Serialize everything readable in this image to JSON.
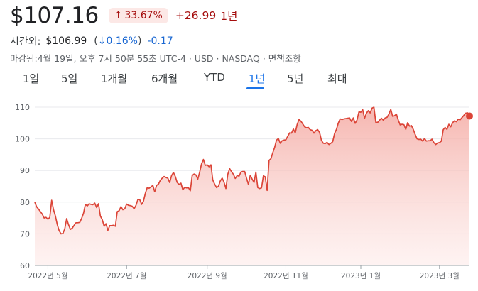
{
  "quote": {
    "price": "$107.16",
    "change_pct": "33.67%",
    "change_abs": "+26.99",
    "period": "1년"
  },
  "after_hours": {
    "label": "시간외:",
    "price": "$106.99",
    "pct_open": "(",
    "pct": "0.16%",
    "pct_close": ")",
    "abs": "-0.17"
  },
  "meta": "마감됨:4월 19일, 오후 7시 50분 55초 UTC-4 · USD · NASDAQ · 면책조항",
  "tabs": [
    {
      "label": "1일",
      "active": false
    },
    {
      "label": "5일",
      "active": false
    },
    {
      "label": "1개월",
      "active": false
    },
    {
      "label": "6개월",
      "active": false
    },
    {
      "label": "YTD",
      "active": false
    },
    {
      "label": "1년",
      "active": true
    },
    {
      "label": "5년",
      "active": false
    },
    {
      "label": "최대",
      "active": false
    }
  ],
  "colors": {
    "line": "#db4437",
    "negative": "#a50e0e",
    "down_after": "#1967d2",
    "accent": "#1a73e8"
  },
  "chart_data": {
    "type": "area",
    "ylim": [
      60,
      110
    ],
    "yticks": [
      60,
      70,
      80,
      90,
      100,
      110
    ],
    "xticks": [
      {
        "label": "2022년 5월",
        "index": 7
      },
      {
        "label": "2022년 7월",
        "index": 49
      },
      {
        "label": "2022년 9월",
        "index": 92
      },
      {
        "label": "2022년 11월",
        "index": 134
      },
      {
        "label": "2023년 1월",
        "index": 174
      },
      {
        "label": "2023년 3월",
        "index": 216
      }
    ],
    "grid": true,
    "values": [
      80.0,
      78.5,
      77.8,
      77.0,
      76.2,
      75.0,
      75.2,
      74.6,
      75.2,
      80.6,
      77.6,
      75.6,
      72.9,
      71.0,
      70.0,
      70.1,
      71.6,
      74.8,
      72.9,
      71.4,
      71.8,
      72.7,
      73.5,
      73.5,
      73.6,
      74.9,
      76.5,
      79.3,
      78.8,
      79.5,
      79.3,
      79.2,
      79.7,
      78.3,
      79.5,
      75.6,
      74.5,
      72.4,
      73.2,
      71.1,
      72.6,
      72.6,
      72.7,
      72.4,
      77.0,
      77.3,
      78.6,
      77.6,
      77.9,
      79.4,
      79.0,
      78.9,
      78.7,
      77.9,
      79.0,
      80.8,
      80.8,
      79.3,
      80.3,
      82.8,
      84.6,
      84.4,
      84.8,
      85.3,
      83.3,
      85.3,
      85.7,
      86.9,
      87.6,
      88.1,
      87.8,
      87.6,
      86.2,
      88.4,
      89.4,
      88.1,
      86.2,
      85.6,
      86.0,
      83.9,
      84.7,
      84.5,
      84.6,
      83.6,
      88.4,
      88.9,
      88.6,
      87.3,
      89.5,
      92.1,
      93.5,
      91.6,
      91.8,
      91.2,
      91.8,
      87.0,
      85.7,
      84.6,
      85.0,
      86.7,
      87.6,
      86.3,
      84.3,
      88.8,
      90.6,
      89.6,
      88.8,
      87.5,
      88.4,
      88.2,
      89.5,
      89.7,
      89.7,
      87.6,
      85.6,
      88.5,
      87.3,
      86.2,
      89.5,
      84.6,
      84.3,
      84.5,
      88.3,
      88.0,
      83.7,
      93.2,
      93.7,
      95.6,
      97.3,
      99.6,
      100.1,
      98.6,
      99.4,
      99.6,
      99.7,
      100.8,
      101.9,
      101.8,
      103.1,
      101.9,
      104.5,
      106.1,
      105.6,
      104.7,
      103.8,
      103.5,
      103.6,
      102.9,
      102.7,
      101.8,
      102.6,
      102.9,
      102.0,
      99.5,
      98.6,
      98.5,
      98.9,
      98.2,
      98.6,
      99.1,
      101.7,
      103.0,
      105.0,
      106.3,
      106.1,
      106.3,
      106.4,
      106.5,
      106.6,
      105.5,
      106.6,
      104.9,
      106.0,
      108.5,
      108.4,
      109.2,
      106.5,
      108.1,
      108.9,
      108.2,
      109.7,
      110.0,
      105.2,
      105.2,
      105.9,
      106.5,
      105.9,
      106.6,
      106.8,
      107.8,
      109.3,
      107.1,
      107.3,
      107.8,
      105.9,
      104.4,
      104.6,
      104.5,
      103.0,
      105.1,
      104.0,
      104.2,
      103.0,
      101.4,
      100.0,
      99.8,
      99.9,
      99.3,
      100.1,
      99.3,
      99.4,
      99.4,
      99.9,
      98.8,
      98.2,
      98.7,
      98.8,
      99.3,
      102.9,
      103.6,
      103.0,
      104.6,
      103.8,
      105.1,
      105.7,
      105.4,
      106.2,
      106.0,
      106.7,
      107.4,
      108.1,
      108.2,
      107.2
    ]
  }
}
